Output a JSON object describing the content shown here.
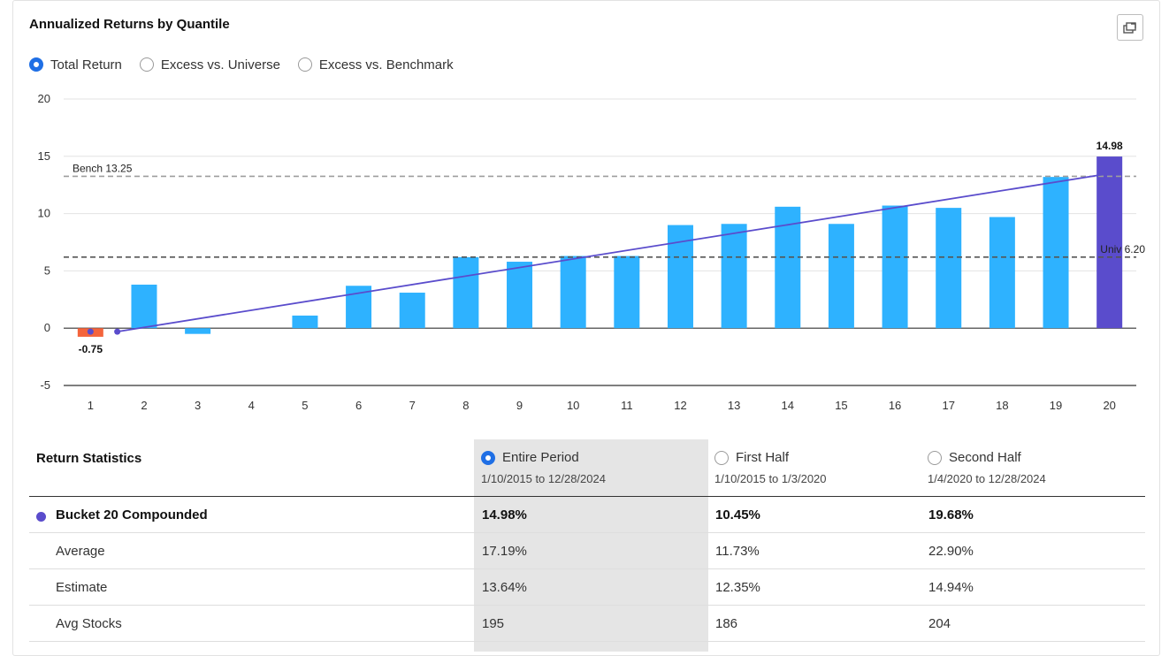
{
  "title": "Annualized Returns by Quantile",
  "view_options": [
    {
      "label": "Total Return",
      "selected": true
    },
    {
      "label": "Excess vs. Universe",
      "selected": false
    },
    {
      "label": "Excess vs. Benchmark",
      "selected": false
    }
  ],
  "icons": {
    "export": "export-image-icon"
  },
  "colors": {
    "bar_positive": "#2eb2ff",
    "bar_negative_first": "#f4643c",
    "bar_last": "#5a4ccc",
    "trend_line": "#5a4ccc",
    "bench_line": "#9e9e9e",
    "univ_line": "#555555",
    "radio_selected": "#1f6fe5"
  },
  "chart_data": {
    "type": "bar",
    "categories": [
      "1",
      "2",
      "3",
      "4",
      "5",
      "6",
      "7",
      "8",
      "9",
      "10",
      "11",
      "12",
      "13",
      "14",
      "15",
      "16",
      "17",
      "18",
      "19",
      "20"
    ],
    "values": [
      -0.75,
      3.8,
      -0.5,
      0,
      1.1,
      3.7,
      3.1,
      6.2,
      5.8,
      6.3,
      6.3,
      9.0,
      9.1,
      10.6,
      9.1,
      10.7,
      10.5,
      9.7,
      13.2,
      14.98
    ],
    "data_labels": [
      {
        "index": 0,
        "text": "-0.75"
      },
      {
        "index": 19,
        "text": "14.98"
      }
    ],
    "ylim": [
      -5,
      20
    ],
    "yticks": [
      "20",
      "15",
      "10",
      "5",
      "0",
      "-5"
    ],
    "ytick_values": [
      20,
      15,
      10,
      5,
      0,
      -5
    ],
    "grid": true,
    "reference_lines": [
      {
        "label": "Bench 13.25",
        "value": 13.25,
        "style": "dashed"
      },
      {
        "label": "Univ 6.20",
        "value": 6.2,
        "style": "dashed"
      }
    ],
    "trend_line": {
      "start_value": -0.3,
      "end_value": 13.5
    }
  },
  "stats": {
    "header_label": "Return Statistics",
    "periods": [
      {
        "label": "Entire Period",
        "range": "1/10/2015 to 12/28/2024",
        "selected": true
      },
      {
        "label": "First Half",
        "range": "1/10/2015 to 1/3/2020",
        "selected": false
      },
      {
        "label": "Second Half",
        "range": "1/4/2020 to 12/28/2024",
        "selected": false
      }
    ],
    "rows": [
      {
        "label": "Bucket 20 Compounded",
        "values": [
          "14.98%",
          "10.45%",
          "19.68%"
        ],
        "bold": true
      },
      {
        "label": "Average",
        "values": [
          "17.19%",
          "11.73%",
          "22.90%"
        ],
        "bold": false
      },
      {
        "label": "Estimate",
        "values": [
          "13.64%",
          "12.35%",
          "14.94%"
        ],
        "bold": false
      },
      {
        "label": "Avg Stocks",
        "values": [
          "195",
          "186",
          "204"
        ],
        "bold": false
      }
    ]
  }
}
